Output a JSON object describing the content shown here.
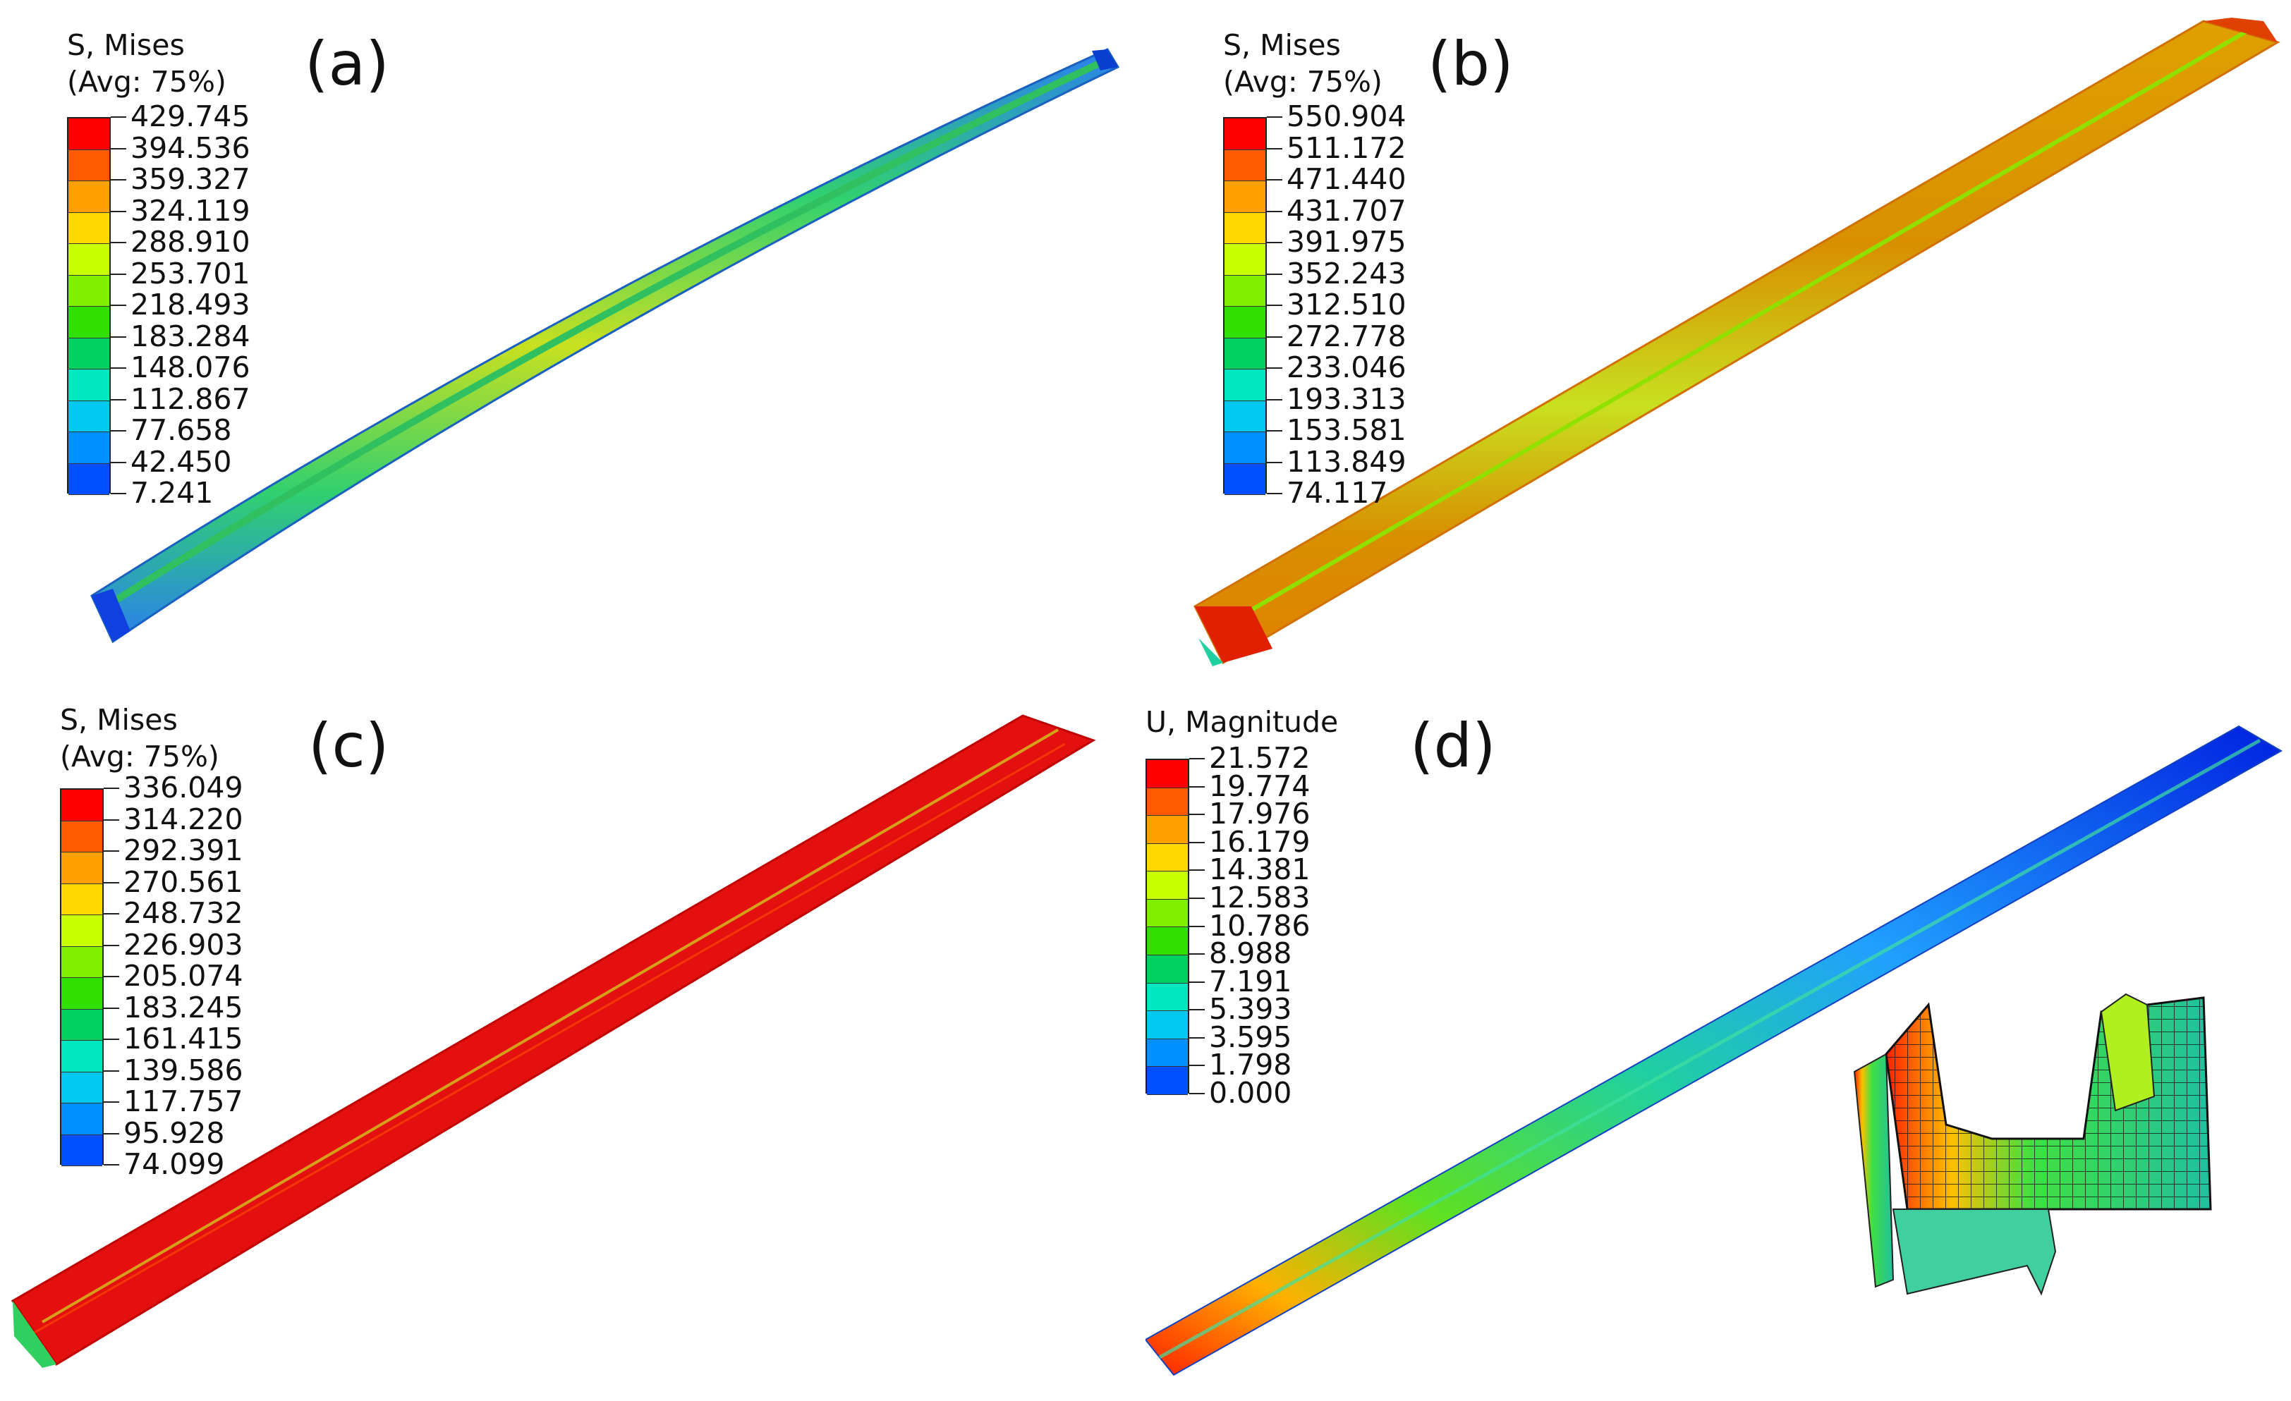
{
  "panels": [
    {
      "tag": "(a)",
      "legend": {
        "title_lines": [
          "S, Mises",
          "(Avg: 75%)"
        ],
        "values": [
          "429.745",
          "394.536",
          "359.327",
          "324.119",
          "288.910",
          "253.701",
          "218.493",
          "183.284",
          "148.076",
          "112.867",
          "77.658",
          "42.450",
          "7.241"
        ]
      }
    },
    {
      "tag": "(b)",
      "legend": {
        "title_lines": [
          "S, Mises",
          "(Avg: 75%)"
        ],
        "values": [
          "550.904",
          "511.172",
          "471.440",
          "431.707",
          "391.975",
          "352.243",
          "312.510",
          "272.778",
          "233.046",
          "193.313",
          "153.581",
          "113.849",
          "74.117"
        ]
      }
    },
    {
      "tag": "(c)",
      "legend": {
        "title_lines": [
          "S, Mises",
          "(Avg: 75%)"
        ],
        "values": [
          "336.049",
          "314.220",
          "292.391",
          "270.561",
          "248.732",
          "226.903",
          "205.074",
          "183.245",
          "161.415",
          "139.586",
          "117.757",
          "95.928",
          "74.099"
        ]
      }
    },
    {
      "tag": "(d)",
      "legend": {
        "title_lines": [
          "U, Magnitude"
        ],
        "values": [
          "21.572",
          "19.774",
          "17.976",
          "16.179",
          "14.381",
          "12.583",
          "10.786",
          "8.988",
          "7.191",
          "5.393",
          "3.595",
          "1.798",
          "0.000"
        ]
      }
    }
  ],
  "colormap": [
    "#ff0000",
    "#ff5a00",
    "#ffa000",
    "#ffd800",
    "#c8ff00",
    "#80f000",
    "#30e000",
    "#00d060",
    "#00e8c0",
    "#00c8f0",
    "#0090ff",
    "#0050ff",
    "#0010ff"
  ]
}
